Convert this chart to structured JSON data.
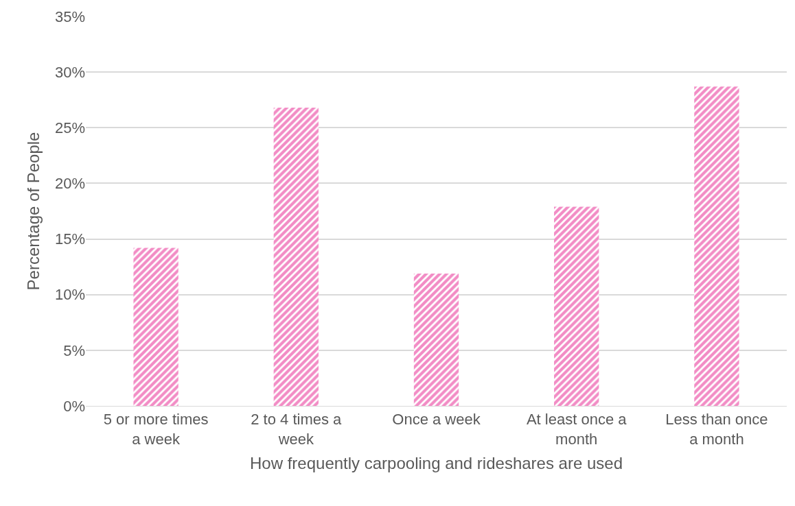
{
  "chart_data": {
    "type": "bar",
    "xlabel": "How frequently carpooling and rideshares are used",
    "ylabel": "Percentage of People",
    "categories": [
      "5 or more times a week",
      "2 to 4 times a week",
      "Once a week",
      "At least once a month",
      "Less than once a month"
    ],
    "values": [
      14.2,
      26.8,
      11.9,
      17.9,
      28.7
    ],
    "color": "#e6198c",
    "ylim": [
      0,
      35
    ],
    "yticks": [
      {
        "value": 0,
        "label": "0%"
      },
      {
        "value": 5,
        "label": "5%"
      },
      {
        "value": 10,
        "label": "10%"
      },
      {
        "value": 15,
        "label": "15%"
      },
      {
        "value": 20,
        "label": "20%"
      },
      {
        "value": 25,
        "label": "25%"
      },
      {
        "value": 30,
        "label": "30%"
      },
      {
        "value": 35,
        "label": "35%"
      }
    ],
    "grid": "y"
  }
}
